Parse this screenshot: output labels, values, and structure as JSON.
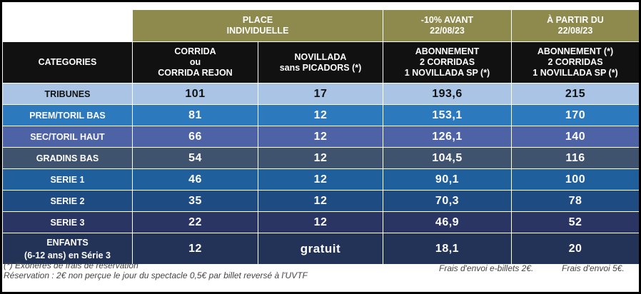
{
  "header_top": {
    "place_individuelle": "PLACE\nINDIVIDUELLE",
    "avant": "-10% AVANT\n22/08/23",
    "apartir": "À PARTIR DU\n22/08/23"
  },
  "header_cols": {
    "categories": "CATEGORIES",
    "corrida": "CORRIDA\nou\nCORRIDA REJON",
    "novillada": "NOVILLADA\nsans PICADORS (*)",
    "abonnement_avant": "ABONNEMENT\n2 CORRIDAS\n1 NOVILLADA SP (*)",
    "abonnement_apartir": "ABONNEMENT (*)\n2 CORRIDAS\n1 NOVILLADA SP (*)"
  },
  "rows": [
    {
      "category": "TRIBUNES",
      "corrida": "101",
      "novillada": "17",
      "avant": "193,6",
      "apartir": "215"
    },
    {
      "category": "PREM/TORIL BAS",
      "corrida": "81",
      "novillada": "12",
      "avant": "153,1",
      "apartir": "170"
    },
    {
      "category": "SEC/TORIL HAUT",
      "corrida": "66",
      "novillada": "12",
      "avant": "126,1",
      "apartir": "140"
    },
    {
      "category": "GRADINS BAS",
      "corrida": "54",
      "novillada": "12",
      "avant": "104,5",
      "apartir": "116"
    },
    {
      "category": "SERIE 1",
      "corrida": "46",
      "novillada": "12",
      "avant": "90,1",
      "apartir": "100"
    },
    {
      "category": "SERIE 2",
      "corrida": "35",
      "novillada": "12",
      "avant": "70,3",
      "apartir": "78"
    },
    {
      "category": "SERIE 3",
      "corrida": "22",
      "novillada": "12",
      "avant": "46,9",
      "apartir": "52"
    },
    {
      "category": "ENFANTS\n(6-12 ans) en Série 3",
      "corrida": "12",
      "novillada": "gratuit",
      "avant": "18,1",
      "apartir": "20"
    }
  ],
  "notes": {
    "exoneres": "(*) Exonérés de frais de réservation",
    "reservation": "Réservation : 2€ non perçue le jour du spectacle 0,5€ par billet reversé à l'UVTF",
    "frais_ebillets": "Frais d'envoi e-billets 2€.",
    "frais_envoi": "Frais d'envoi 5€."
  }
}
